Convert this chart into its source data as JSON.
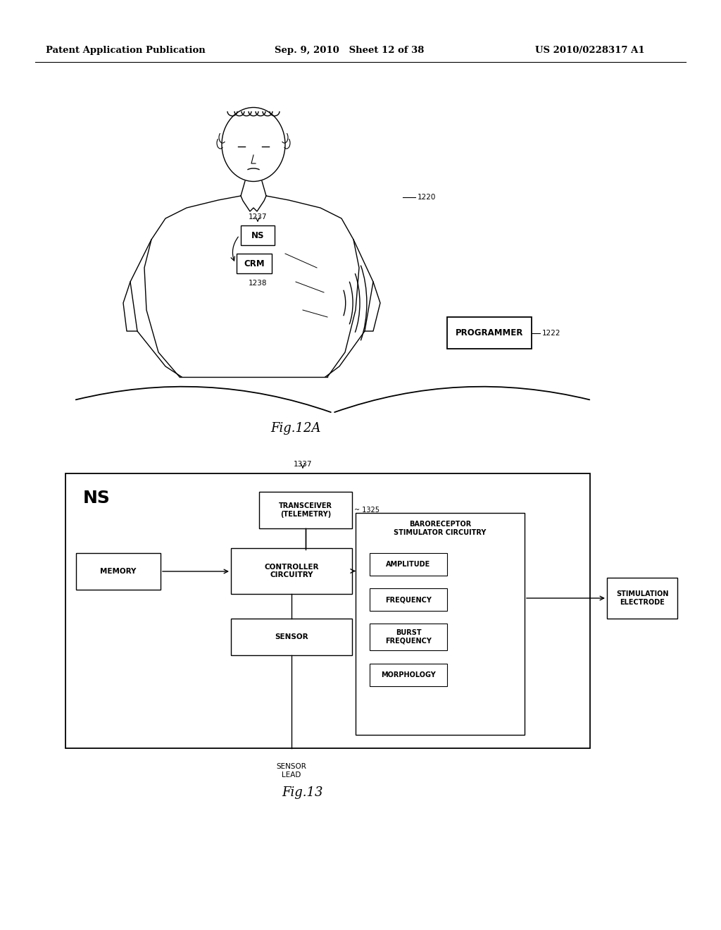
{
  "header_left": "Patent Application Publication",
  "header_mid": "Sep. 9, 2010   Sheet 12 of 38",
  "header_right": "US 2010/0228317 A1",
  "fig12a_label": "Fig.12A",
  "fig13_label": "Fig.13",
  "label_1220": "1220",
  "label_1222": "1222",
  "label_1237": "1237",
  "label_1238": "1238",
  "label_1337": "1337",
  "label_1325": "1325",
  "programmer_text": "PROGRAMMER",
  "ns_box_text": "NS",
  "ns_label": "NS",
  "crm_text": "CRM",
  "transcvr_text": "TRANSCEIVER\n(TELEMETRY)",
  "memory_text": "MEMORY",
  "controller_text": "CONTROLLER\nCIRCUITRY",
  "baro_text": "BARORECEPTOR\nSTIMULATOR CIRCUITRY",
  "sensor_text": "SENSOR",
  "amplitude_text": "AMPLITUDE",
  "frequency_text": "FREQUENCY",
  "burst_freq_text": "BURST\nFREQUENCY",
  "morphology_text": "MORPHOLOGY",
  "stim_elec_text": "STIMULATION\nELECTRODE",
  "sensor_lead_text": "SENSOR\nLEAD",
  "bg_color": "#ffffff",
  "box_color": "#000000",
  "text_color": "#000000"
}
